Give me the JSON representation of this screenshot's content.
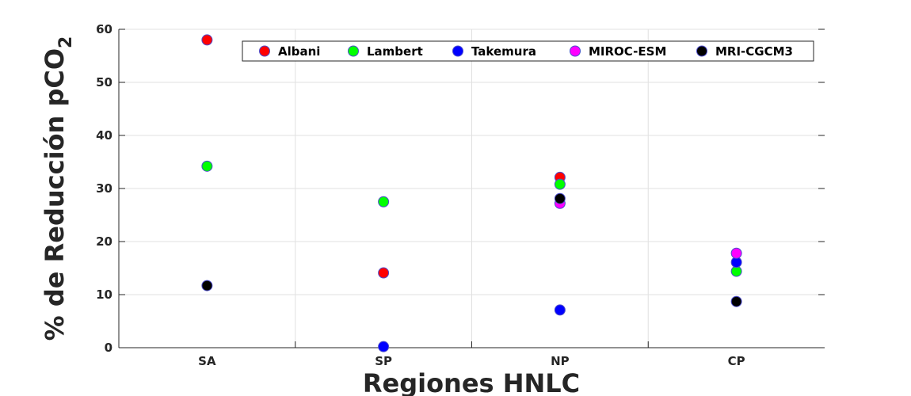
{
  "chart_data": {
    "type": "scatter",
    "title": "",
    "xlabel": "Regiones HNLC",
    "ylabel_main": "% de Reducción pCO",
    "ylabel_sub": "2",
    "categories": [
      "SA",
      "SP",
      "NP",
      "CP"
    ],
    "ylim": [
      0,
      60
    ],
    "yticks": [
      0,
      10,
      20,
      30,
      40,
      50,
      60
    ],
    "grid": true,
    "legend_position": "top-right",
    "series": [
      {
        "name": "Albani",
        "color": "#ff0000",
        "values": [
          58,
          14.1,
          32.1,
          null
        ]
      },
      {
        "name": "Lambert",
        "color": "#00ff00",
        "values": [
          34.2,
          27.5,
          30.8,
          14.4
        ]
      },
      {
        "name": "Takemura",
        "color": "#0000ff",
        "values": [
          null,
          0.2,
          7.1,
          16.1
        ]
      },
      {
        "name": "MIROC-ESM",
        "color": "#ff00ff",
        "values": [
          null,
          null,
          27.2,
          17.8
        ]
      },
      {
        "name": "MRI-CGCM3",
        "color": "#000000",
        "values": [
          11.7,
          null,
          28.1,
          8.7
        ]
      }
    ]
  }
}
